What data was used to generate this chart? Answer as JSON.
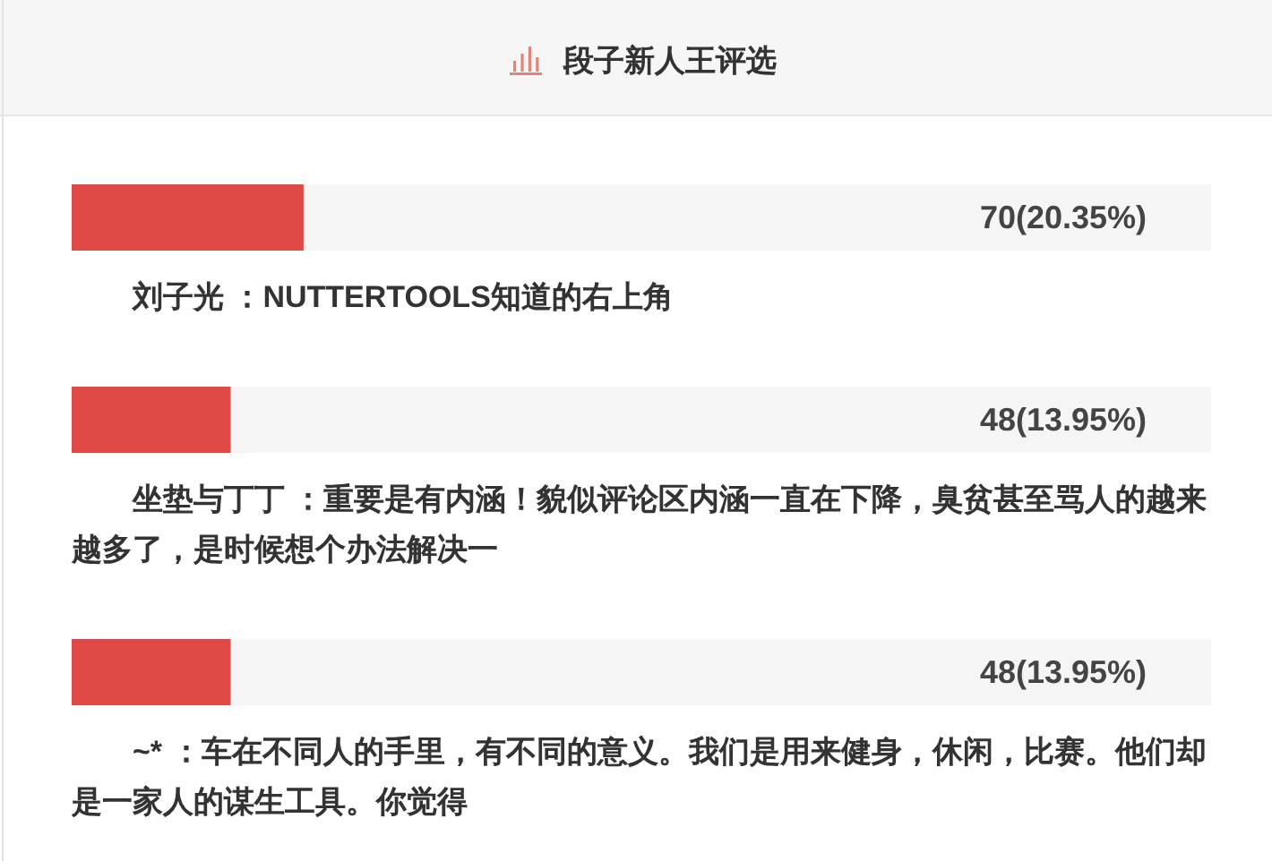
{
  "chart_data": {
    "type": "bar",
    "orientation": "horizontal",
    "title": "段子新人王评选",
    "categories": [
      "刘子光 ：NUTTERTOOLS知道的右上角",
      "坐垫与丁丁 ：重要是有内涵！貌似评论区内涵一直在下降，臭贫甚至骂人的越来越多了，是时候想个办法解决一",
      "~* ：车在不同人的手里，有不同的意义。我们是用来健身，休闲，比赛。他们却是一家人的谋生工具。你觉得"
    ],
    "values": [
      20.35,
      13.95,
      13.95
    ],
    "value_labels": [
      "70(20.35%)",
      "48(13.95%)",
      "48(13.95%)"
    ],
    "color": "#e04a46",
    "xlim": [
      0,
      100
    ]
  }
}
